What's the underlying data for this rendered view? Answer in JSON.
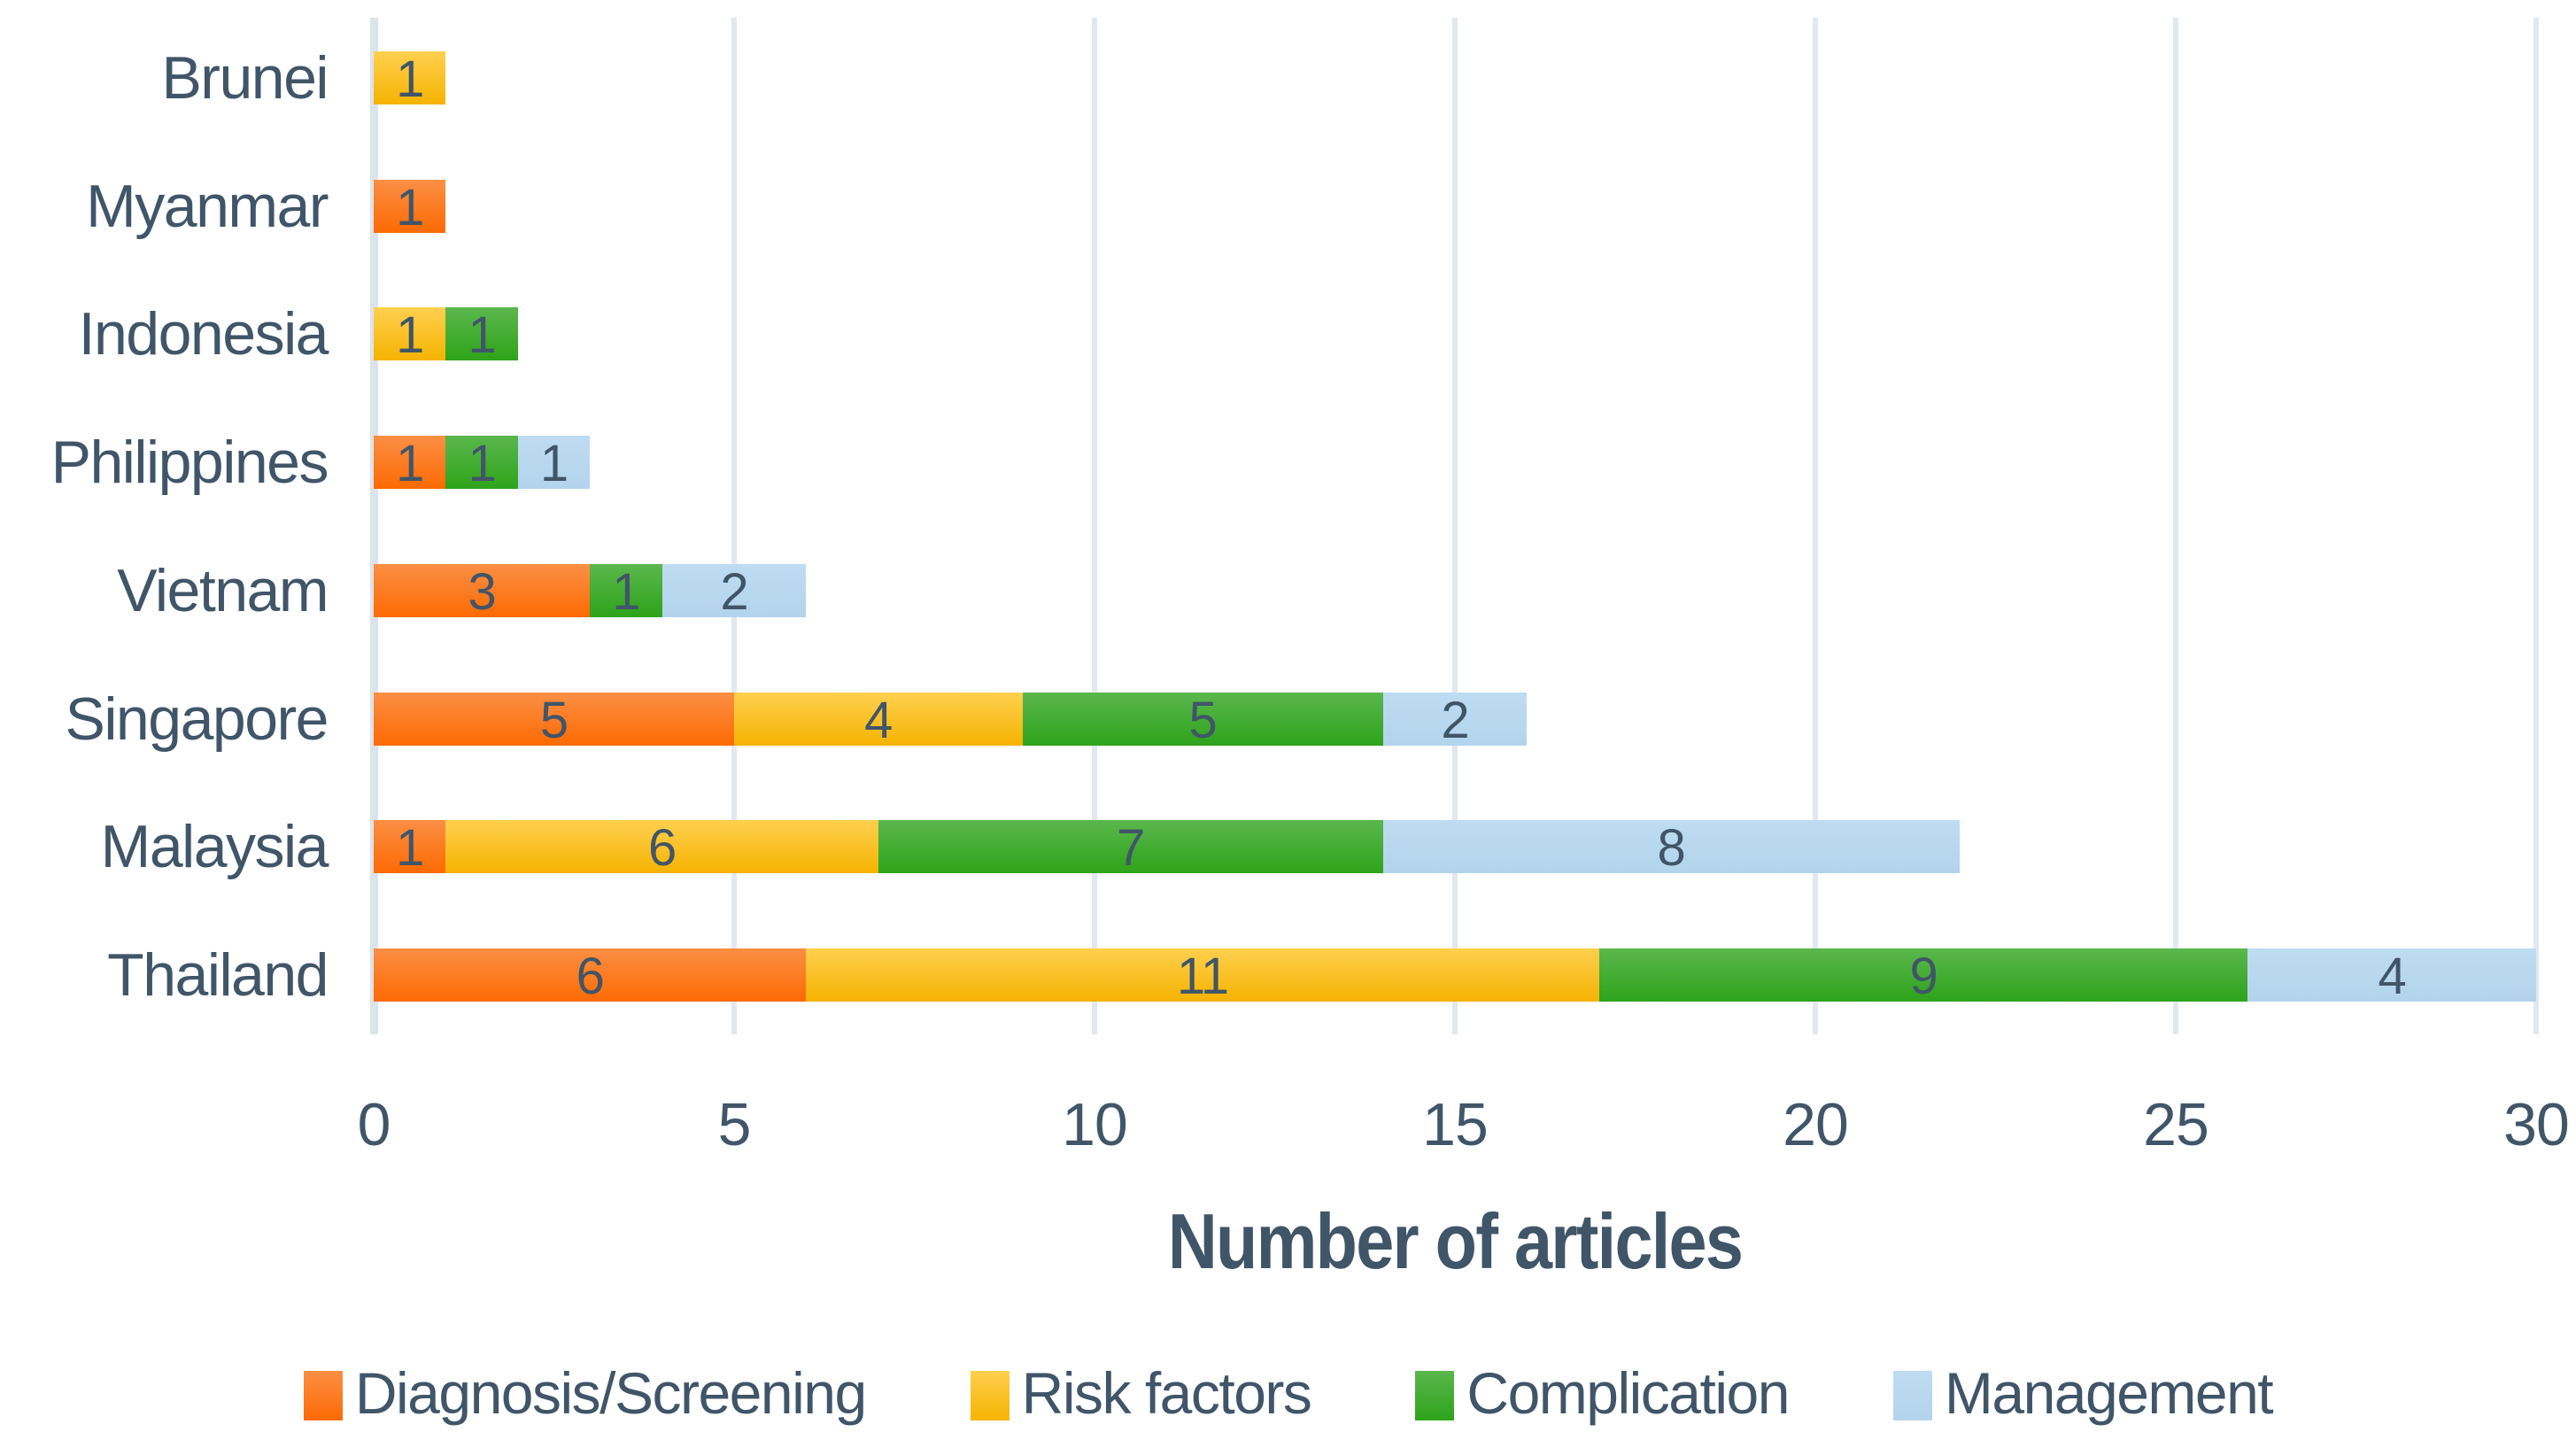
{
  "chart_data": {
    "type": "bar",
    "orientation": "horizontal",
    "stacked": true,
    "title": "",
    "xlabel": "Number of articles",
    "ylabel": "",
    "xlim": [
      0,
      30
    ],
    "x_ticks": [
      0,
      5,
      10,
      15,
      20,
      25,
      30
    ],
    "grid": true,
    "legend_position": "bottom",
    "categories": [
      "Brunei",
      "Myanmar",
      "Indonesia",
      "Philippines",
      "Vietnam",
      "Singapore",
      "Malaysia",
      "Thailand"
    ],
    "series": [
      {
        "name": "Diagnosis/Screening",
        "color_top": "#FC8F45",
        "color_bottom": "#FC6A03",
        "values": [
          0,
          1,
          0,
          1,
          3,
          5,
          1,
          6
        ]
      },
      {
        "name": "Risk factors",
        "color_top": "#FFD04F",
        "color_bottom": "#F5B301",
        "values": [
          1,
          0,
          1,
          0,
          0,
          4,
          6,
          11
        ]
      },
      {
        "name": "Complication",
        "color_top": "#5BB74D",
        "color_bottom": "#2EA31A",
        "values": [
          0,
          0,
          1,
          1,
          1,
          5,
          7,
          9
        ]
      },
      {
        "name": "Management",
        "color_top": "#BEDCF2",
        "color_bottom": "#B2D4EC",
        "values": [
          0,
          0,
          0,
          1,
          2,
          2,
          8,
          4
        ]
      }
    ],
    "totals": [
      1,
      1,
      2,
      3,
      6,
      16,
      22,
      30
    ],
    "colors": {
      "text": "#415568",
      "gridline": "#E1E8EE",
      "axis_line": "#DCE4EB",
      "background": "#FFFFFF"
    }
  }
}
